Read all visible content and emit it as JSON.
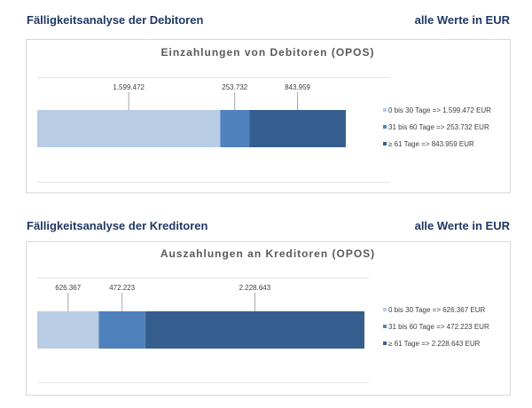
{
  "sections": [
    {
      "title": "Fälligkeitsanalyse der Debitoren",
      "unit": "alle Werte in EUR"
    },
    {
      "title": "Fälligkeitsanalyse der Kreditoren",
      "unit": "alle Werte in EUR"
    }
  ],
  "colors": {
    "bucket_1": "#b8cce4",
    "bucket_2": "#4f81bd",
    "bucket_3": "#355e8f"
  },
  "chart_data": [
    {
      "type": "bar",
      "orientation": "horizontal-stacked",
      "title": "Einzahlungen von Debitoren (OPOS)",
      "series": [
        {
          "name": "0 bis 30 Tage",
          "value": 1599472,
          "data_label": "1.599.472",
          "legend": "0 bis 30 Tage => 1.599.472 EUR"
        },
        {
          "name": "31 bis 60 Tage",
          "value": 253732,
          "data_label": "253.732",
          "legend": "31 bis 60 Tage => 253.732 EUR"
        },
        {
          "name": "≥ 61 Tage",
          "value": 843959,
          "data_label": "843.959",
          "legend": "≥ 61 Tage => 843.959 EUR"
        }
      ],
      "legend_position": "right"
    },
    {
      "type": "bar",
      "orientation": "horizontal-stacked",
      "title": "Auszahlungen an Kreditoren (OPOS)",
      "series": [
        {
          "name": "0 bis 30 Tage",
          "value": 626367,
          "data_label": "626.367",
          "legend": "0 bis 30 Tage => 626.367 EUR"
        },
        {
          "name": "31 bis 60 Tage",
          "value": 472223,
          "data_label": "472.223",
          "legend": "31 bis 60 Tage => 472.223 EUR"
        },
        {
          "name": "≥ 61 Tage",
          "value": 2228643,
          "data_label": "2.228.643",
          "legend": "≥ 61 Tage => 2.228.643 EUR"
        }
      ],
      "legend_position": "right"
    }
  ]
}
